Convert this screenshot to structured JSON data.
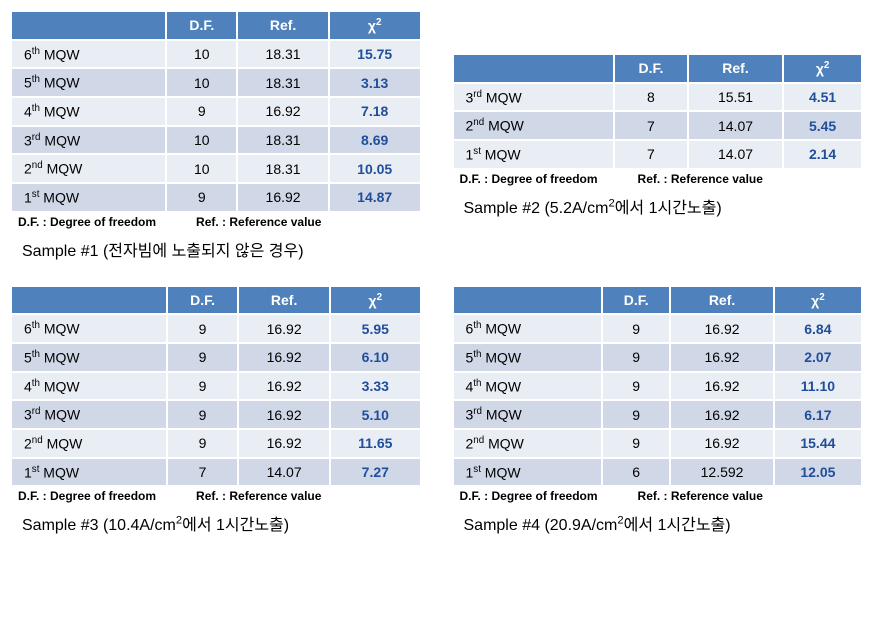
{
  "colors": {
    "header_bg": "#4f81bd",
    "header_text": "#ffffff",
    "row_even": "#e9edf4",
    "row_odd": "#d0d8e8",
    "chi_color": "#1f4e9b",
    "border": "#ffffff",
    "background": "#ffffff"
  },
  "typography": {
    "font_family": "Arial",
    "cell_fontsize_pt": 11,
    "legend_fontsize_pt": 9,
    "caption_fontsize_pt": 12
  },
  "shared": {
    "headers": {
      "col0": "",
      "df": "D.F.",
      "ref": "Ref.",
      "chi": "χ",
      "chi_sup": "2"
    },
    "legend": {
      "df": "D.F. : Degree of freedom",
      "ref": "Ref. : Reference value"
    },
    "mqw_label": " MQW"
  },
  "tables": [
    {
      "id": "sample1",
      "caption_pre": "Sample #1 (",
      "caption_main": "전자빔에 노출되지 않은 경우",
      "caption_post": ")",
      "caption_sup": "",
      "rows": [
        {
          "ord": "6",
          "sup": "th",
          "df": "10",
          "ref": "18.31",
          "chi": "15.75"
        },
        {
          "ord": "5",
          "sup": "th",
          "df": "10",
          "ref": "18.31",
          "chi": "3.13"
        },
        {
          "ord": "4",
          "sup": "th",
          "df": "9",
          "ref": "16.92",
          "chi": "7.18"
        },
        {
          "ord": "3",
          "sup": "rd",
          "df": "10",
          "ref": "18.31",
          "chi": "8.69"
        },
        {
          "ord": "2",
          "sup": "nd",
          "df": "10",
          "ref": "18.31",
          "chi": "10.05"
        },
        {
          "ord": "1",
          "sup": "st",
          "df": "9",
          "ref": "16.92",
          "chi": "14.87"
        }
      ]
    },
    {
      "id": "sample2",
      "caption_pre": "Sample #2 (5.2A/cm",
      "caption_sup": "2",
      "caption_main": "에서 1시간노출",
      "caption_post": ")",
      "rows": [
        {
          "ord": "3",
          "sup": "rd",
          "df": "8",
          "ref": "15.51",
          "chi": "4.51"
        },
        {
          "ord": "2",
          "sup": "nd",
          "df": "7",
          "ref": "14.07",
          "chi": "5.45"
        },
        {
          "ord": "1",
          "sup": "st",
          "df": "7",
          "ref": "14.07",
          "chi": "2.14"
        }
      ]
    },
    {
      "id": "sample3",
      "caption_pre": "Sample #3 (10.4A/cm",
      "caption_sup": "2",
      "caption_main": "에서 1시간노출",
      "caption_post": ")",
      "rows": [
        {
          "ord": "6",
          "sup": "th",
          "df": "9",
          "ref": "16.92",
          "chi": "5.95"
        },
        {
          "ord": "5",
          "sup": "th",
          "df": "9",
          "ref": "16.92",
          "chi": "6.10"
        },
        {
          "ord": "4",
          "sup": "th",
          "df": "9",
          "ref": "16.92",
          "chi": "3.33"
        },
        {
          "ord": "3",
          "sup": "rd",
          "df": "9",
          "ref": "16.92",
          "chi": "5.10"
        },
        {
          "ord": "2",
          "sup": "nd",
          "df": "9",
          "ref": "16.92",
          "chi": "11.65"
        },
        {
          "ord": "1",
          "sup": "st",
          "df": "7",
          "ref": "14.07",
          "chi": "7.27"
        }
      ]
    },
    {
      "id": "sample4",
      "caption_pre": "Sample #4 (20.9A/cm",
      "caption_sup": "2",
      "caption_main": "에서 1시간노출",
      "caption_post": ")",
      "rows": [
        {
          "ord": "6",
          "sup": "th",
          "df": "9",
          "ref": "16.92",
          "chi": "6.84"
        },
        {
          "ord": "5",
          "sup": "th",
          "df": "9",
          "ref": "16.92",
          "chi": "2.07"
        },
        {
          "ord": "4",
          "sup": "th",
          "df": "9",
          "ref": "16.92",
          "chi": "11.10"
        },
        {
          "ord": "3",
          "sup": "rd",
          "df": "9",
          "ref": "16.92",
          "chi": "6.17"
        },
        {
          "ord": "2",
          "sup": "nd",
          "df": "9",
          "ref": "16.92",
          "chi": "15.44"
        },
        {
          "ord": "1",
          "sup": "st",
          "df": "6",
          "ref": "12.592",
          "chi": "12.05"
        }
      ]
    }
  ]
}
